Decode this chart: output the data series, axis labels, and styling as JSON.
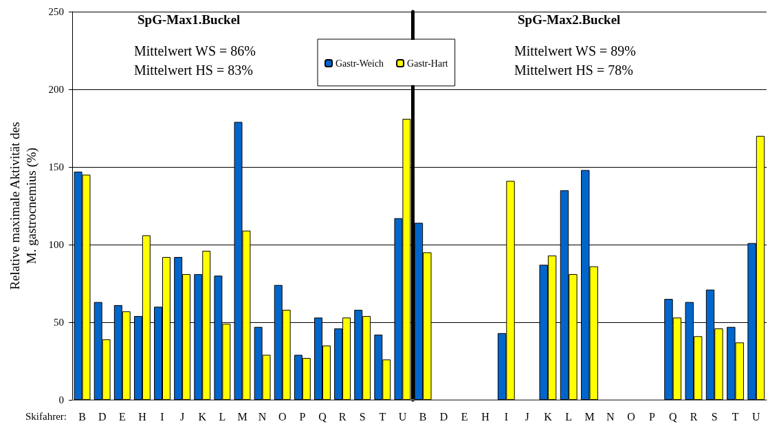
{
  "chart_data": [
    {
      "type": "bar",
      "title": "SpG-Max1.Buckel",
      "annotations": [
        "Mittelwert WS = 86%",
        "Mittelwert HS = 83%"
      ],
      "xlabel": "Skifahrer:",
      "ylabel": "Relative maximale Aktivität des\nM. gastrocnemius (%)",
      "categories": [
        "B",
        "D",
        "E",
        "H",
        "I",
        "J",
        "K",
        "L",
        "M",
        "N",
        "O",
        "P",
        "Q",
        "R",
        "S",
        "T",
        "U"
      ],
      "series": [
        {
          "name": "Gastr-Weich",
          "color": "#0066cc",
          "values": [
            147,
            63,
            61,
            54,
            60,
            92,
            81,
            80,
            179,
            47,
            74,
            29,
            53,
            46,
            58,
            42,
            117
          ]
        },
        {
          "name": "Gastr-Hart",
          "color": "#ffff00",
          "values": [
            145,
            39,
            57,
            106,
            92,
            81,
            96,
            49,
            109,
            29,
            58,
            27,
            35,
            53,
            54,
            26,
            181
          ]
        }
      ],
      "ylim": [
        0,
        250
      ],
      "yticks": [
        0,
        50,
        100,
        150,
        200,
        250
      ],
      "grid": "y",
      "legend": "top"
    },
    {
      "type": "bar",
      "title": "SpG-Max2.Buckel",
      "annotations": [
        "Mittelwert WS = 89%",
        "Mittelwert HS = 78%"
      ],
      "categories": [
        "B",
        "D",
        "E",
        "H",
        "I",
        "J",
        "K",
        "L",
        "M",
        "N",
        "O",
        "P",
        "Q",
        "R",
        "S",
        "T",
        "U"
      ],
      "series": [
        {
          "color": "#0066cc",
          "values": [
            114,
            null,
            null,
            null,
            43,
            null,
            87,
            135,
            148,
            null,
            null,
            null,
            65,
            63,
            71,
            47,
            101
          ]
        },
        {
          "color": "#ffff00",
          "values": [
            95,
            null,
            null,
            null,
            141,
            null,
            93,
            81,
            86,
            null,
            null,
            null,
            53,
            41,
            46,
            37,
            170
          ]
        }
      ],
      "ylim": [
        0,
        250
      ],
      "yticks": [
        0,
        50,
        100,
        150,
        200,
        250
      ],
      "grid": "y",
      "tick_labels": "x"
    }
  ]
}
